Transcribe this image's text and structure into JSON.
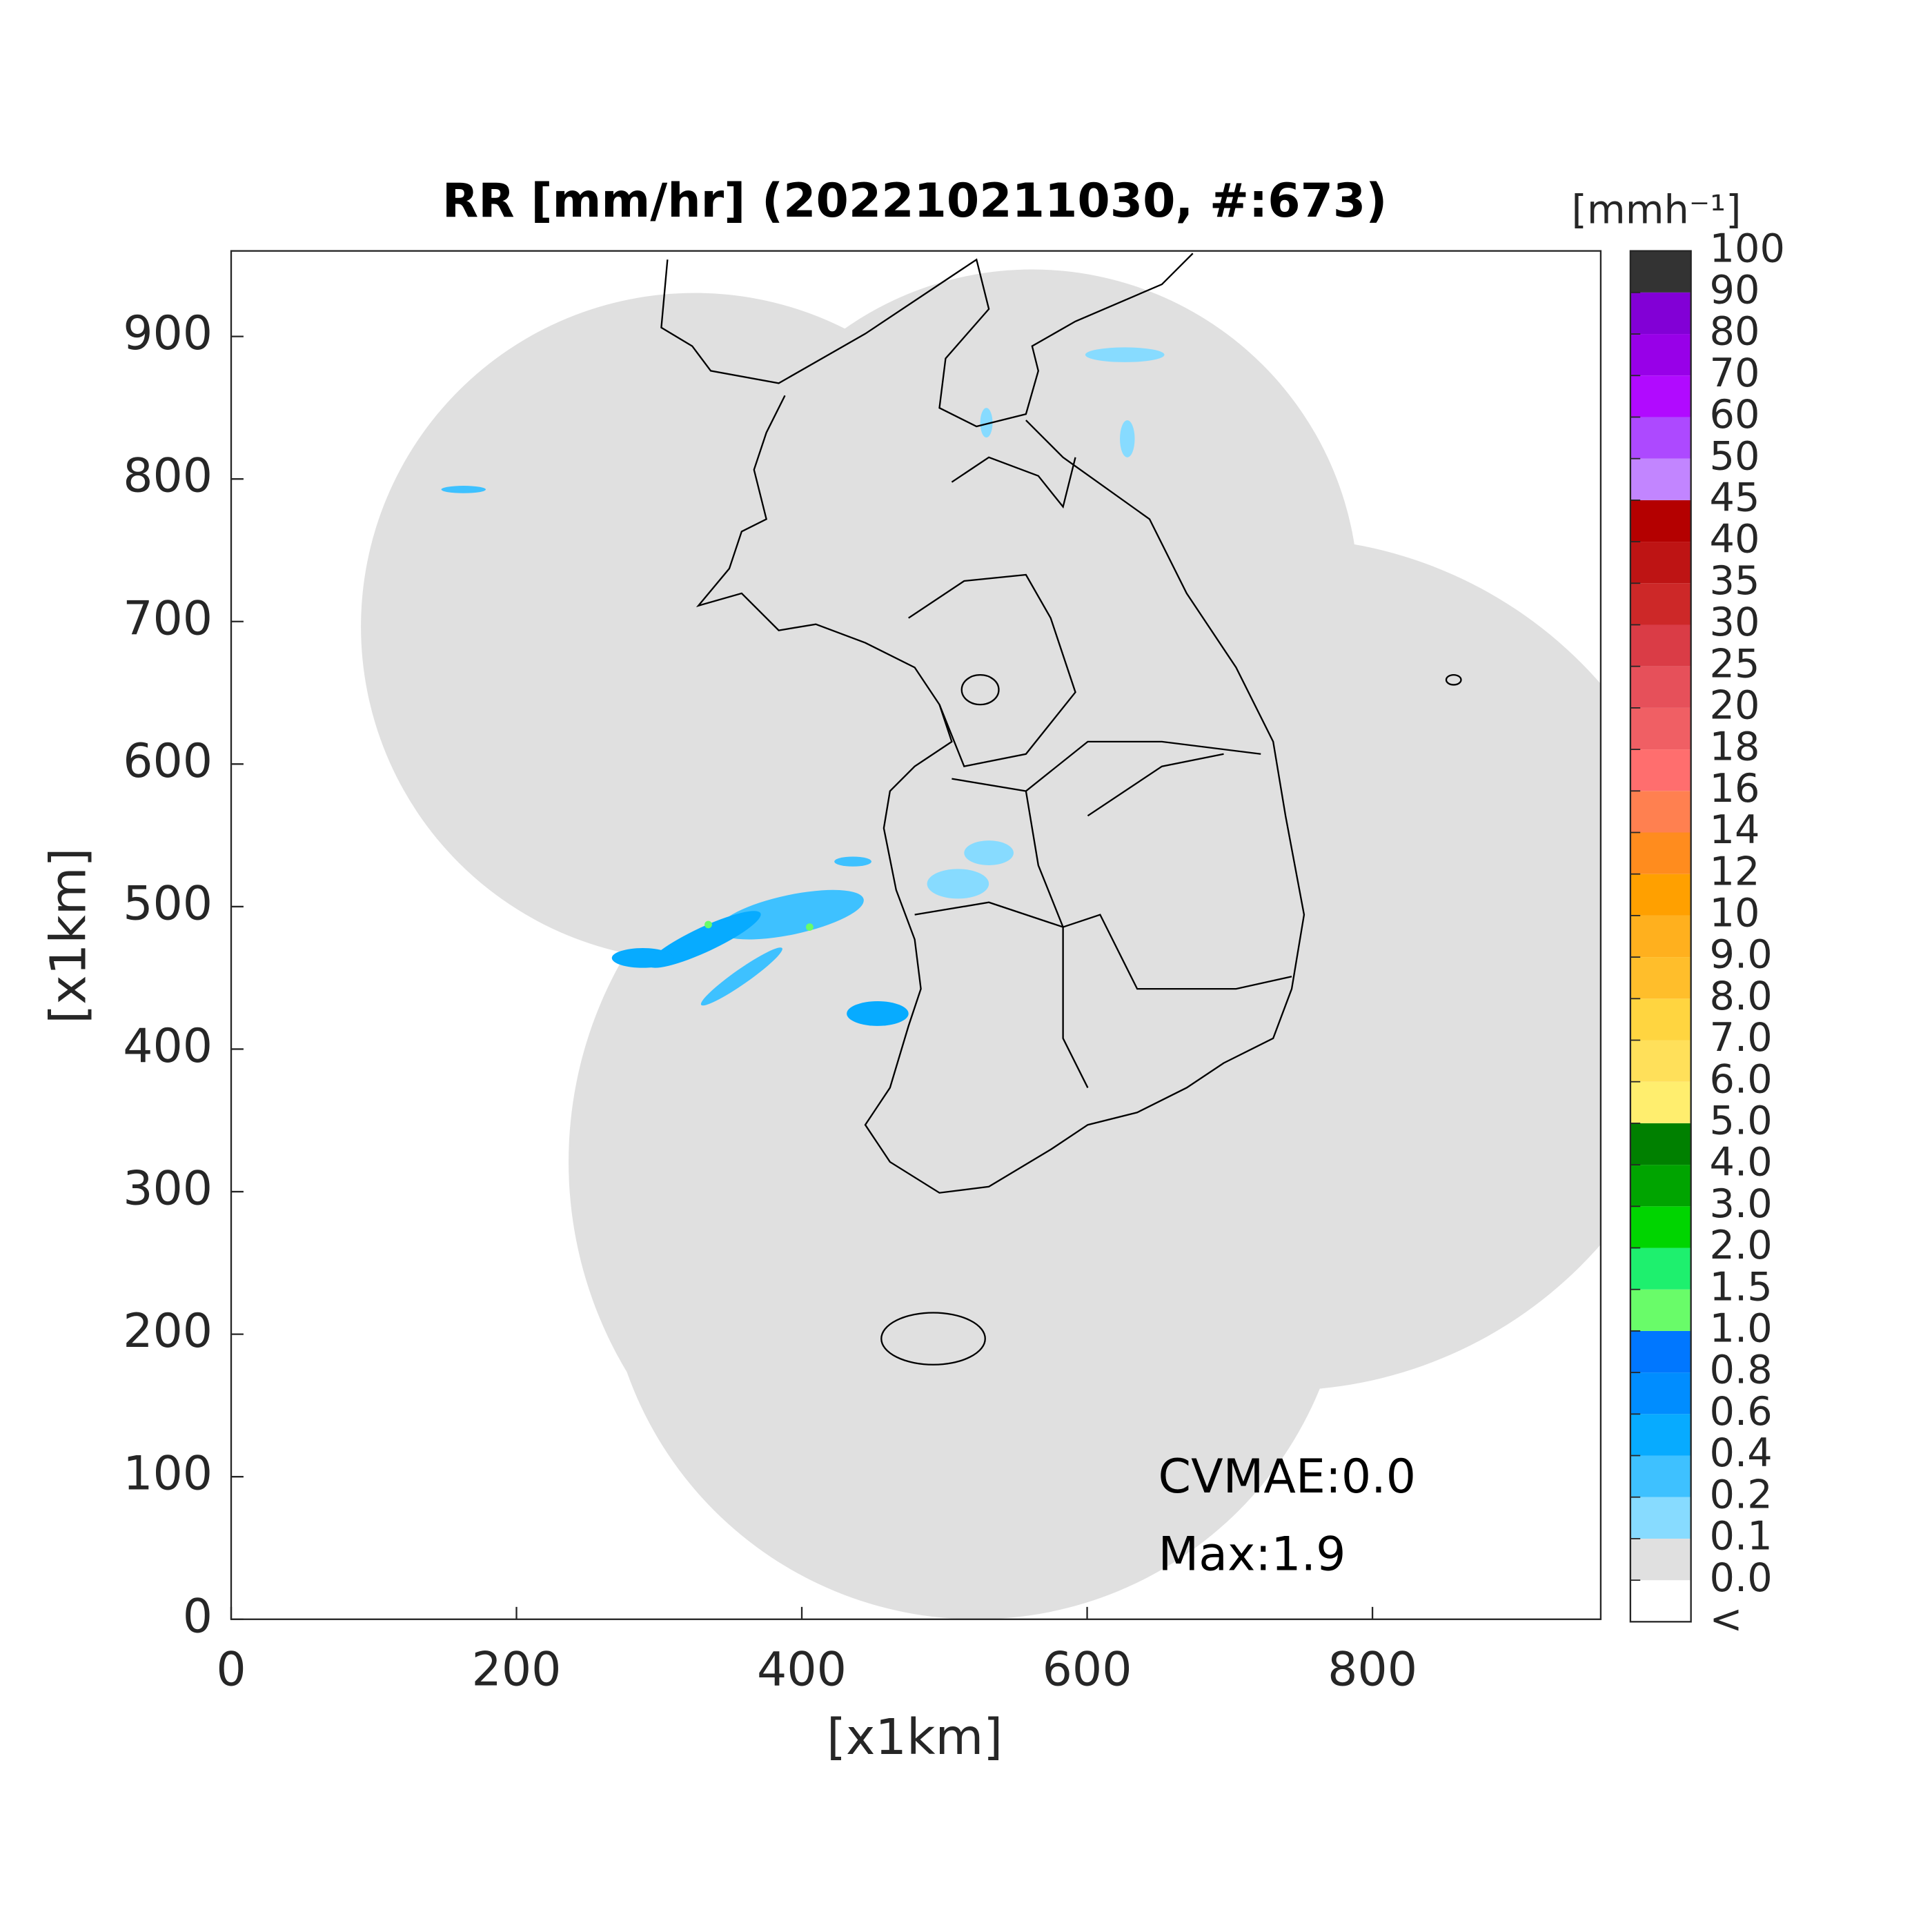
{
  "chart_data": {
    "type": "map",
    "title": "RR [mm/hr] (202210211030, #:673)",
    "x_label": "[x1km]",
    "y_label": "[x1km]",
    "xlim": [
      0,
      960
    ],
    "ylim": [
      0,
      960
    ],
    "xticks": [
      0,
      200,
      400,
      600,
      800
    ],
    "yticks": [
      0,
      100,
      200,
      300,
      400,
      500,
      600,
      700,
      800,
      900
    ],
    "background_color": "#e0e0e0",
    "annotations": [
      "CVMAE:0.0",
      "Max:1.9"
    ],
    "colorbar": {
      "title": "[mmh⁻¹]",
      "labels": [
        "<",
        "0.0",
        "0.1",
        "0.2",
        "0.4",
        "0.6",
        "0.8",
        "1.0",
        "1.5",
        "2.0",
        "3.0",
        "4.0",
        "5.0",
        "6.0",
        "7.0",
        "8.0",
        "9.0",
        "10",
        "12",
        "14",
        "16",
        "18",
        "20",
        "25",
        "30",
        "35",
        "40",
        "45",
        "50",
        "60",
        "70",
        "80",
        "90",
        "100"
      ],
      "colors": [
        "#ffffff",
        "#e0e0e0",
        "#87dbff",
        "#3ec1ff",
        "#07abff",
        "#008dff",
        "#0077ff",
        "#69fc69",
        "#1ef06e",
        "#00d500",
        "#00a400",
        "#008000",
        "#ffee6e",
        "#ffe05a",
        "#ffd540",
        "#ffbe2b",
        "#ffb01e",
        "#ffa000",
        "#ff8c1e",
        "#ff8050",
        "#ff6e6e",
        "#f05f64",
        "#e6505a",
        "#da3c46",
        "#cd2828",
        "#be1414",
        "#b40000",
        "#c285ff",
        "#ad49ff",
        "#b10aff",
        "#9800e8",
        "#8200d6",
        "#333333"
      ]
    }
  }
}
